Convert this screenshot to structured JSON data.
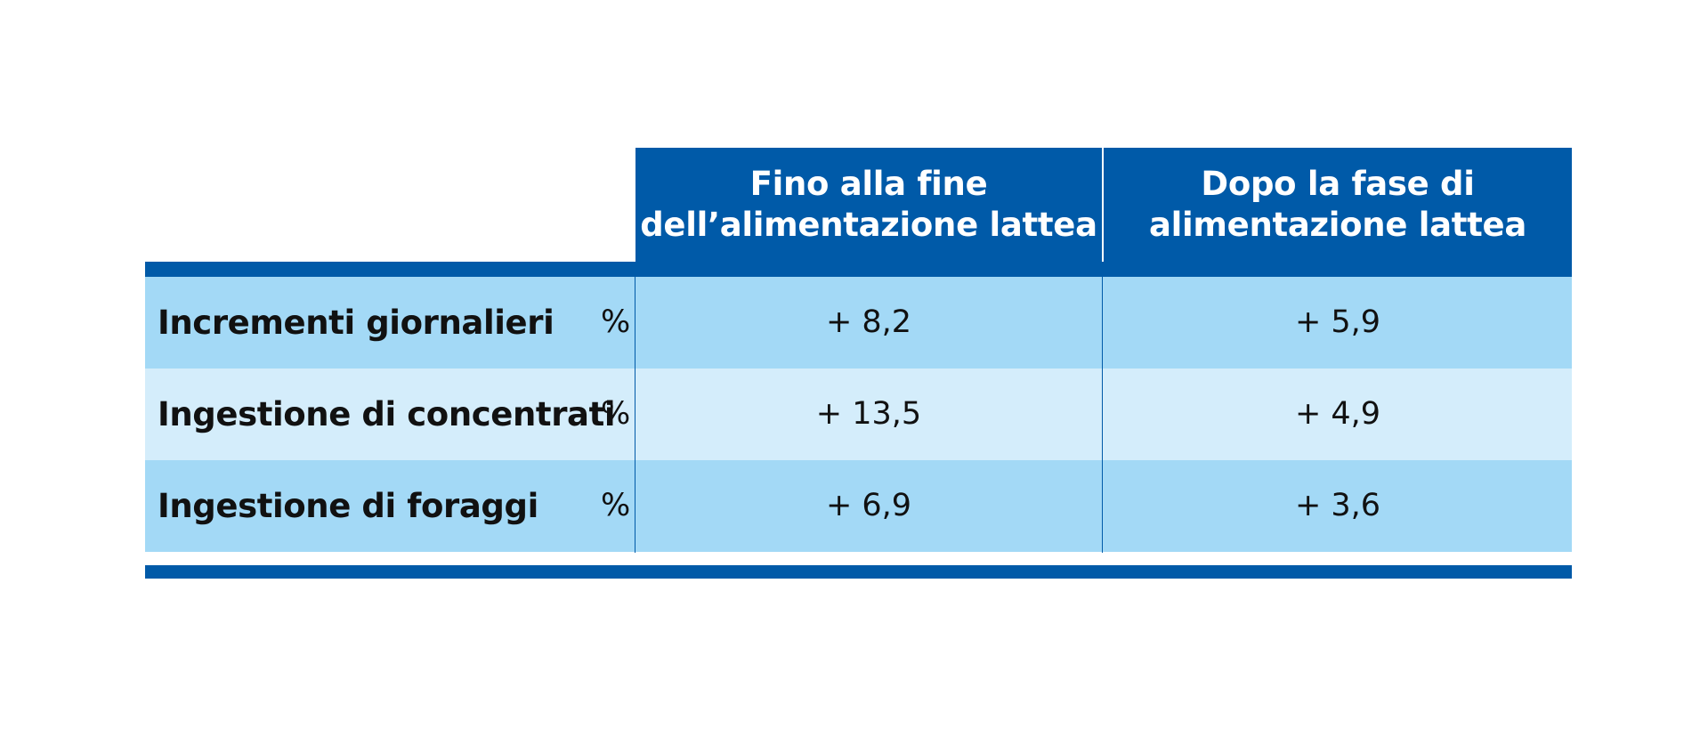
{
  "table": {
    "columns": [
      {
        "line1": "Fino alla fine",
        "line2": "dell’alimentazione lattea"
      },
      {
        "line1": "Dopo la fase di",
        "line2": "alimentazione lattea"
      }
    ],
    "rows": [
      {
        "label": "Incrementi giornalieri",
        "unit": "%",
        "values": [
          "+ 8,2",
          "+ 5,9"
        ]
      },
      {
        "label": "Ingestione di concentrati",
        "unit": "%",
        "values": [
          "+ 13,5",
          "+ 4,9"
        ]
      },
      {
        "label": "Ingestione di foraggi",
        "unit": "%",
        "values": [
          "+ 6,9",
          "+ 3,6"
        ]
      }
    ]
  },
  "colors": {
    "header": "#005aa8",
    "row_dark": "#a3d9f6",
    "row_light": "#d4edfb"
  }
}
